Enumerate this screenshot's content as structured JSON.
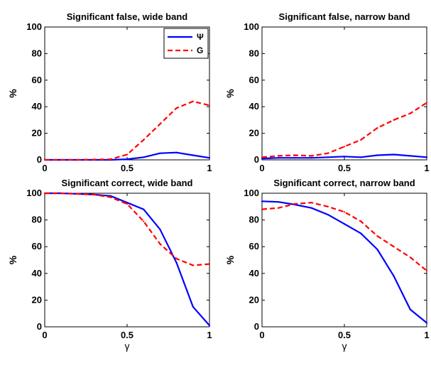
{
  "chart_data": [
    {
      "type": "line",
      "title": "Significant false, wide band",
      "xlabel": "",
      "ylabel": "%",
      "xlim": [
        0,
        1
      ],
      "ylim": [
        0,
        100
      ],
      "xticks": [
        "0",
        "0.5",
        "1"
      ],
      "yticks": [
        "0",
        "20",
        "40",
        "60",
        "80",
        "100"
      ],
      "grid": false,
      "legend": {
        "show": true,
        "placement": "top-right"
      },
      "x": [
        0,
        0.1,
        0.2,
        0.3,
        0.4,
        0.5,
        0.6,
        0.7,
        0.8,
        0.9,
        1.0
      ],
      "series": [
        {
          "name": "Ψ",
          "color": "#0000ff",
          "dash": "solid",
          "values": [
            0,
            0,
            0,
            0,
            0,
            0.5,
            2,
            5,
            5.5,
            3.5,
            1.5
          ]
        },
        {
          "name": "G",
          "color": "#ff0000",
          "dash": "dashed",
          "values": [
            0,
            0,
            0,
            0.2,
            0.5,
            4,
            15,
            27,
            39,
            44,
            41
          ]
        }
      ]
    },
    {
      "type": "line",
      "title": "Significant false, narrow band",
      "xlabel": "",
      "ylabel": "%",
      "xlim": [
        0,
        1
      ],
      "ylim": [
        0,
        100
      ],
      "xticks": [
        "0",
        "0.5",
        "1"
      ],
      "yticks": [
        "0",
        "20",
        "40",
        "60",
        "80",
        "100"
      ],
      "grid": false,
      "legend": {
        "show": false,
        "placement": "none"
      },
      "x": [
        0,
        0.1,
        0.2,
        0.3,
        0.4,
        0.5,
        0.6,
        0.7,
        0.8,
        0.9,
        1.0
      ],
      "series": [
        {
          "color": "#0000ff",
          "dash": "solid",
          "values": [
            1,
            1.5,
            1.5,
            1.5,
            2,
            2.5,
            2,
            3.5,
            4,
            3,
            2
          ]
        },
        {
          "color": "#ff0000",
          "dash": "dashed",
          "values": [
            2,
            3,
            3.5,
            3,
            5,
            10,
            15,
            24,
            30,
            35,
            43
          ]
        }
      ]
    },
    {
      "type": "line",
      "title": "Significant correct, wide band",
      "xlabel": "γ",
      "ylabel": "%",
      "xlim": [
        0,
        1
      ],
      "ylim": [
        0,
        100
      ],
      "xticks": [
        "0",
        "0.5",
        "1"
      ],
      "yticks": [
        "0",
        "20",
        "40",
        "60",
        "80",
        "100"
      ],
      "grid": false,
      "legend": {
        "show": false,
        "placement": "none"
      },
      "x": [
        0,
        0.1,
        0.2,
        0.3,
        0.4,
        0.5,
        0.6,
        0.7,
        0.8,
        0.9,
        1.0
      ],
      "series": [
        {
          "color": "#0000ff",
          "dash": "solid",
          "values": [
            100,
            100,
            99.5,
            99,
            98,
            93,
            88,
            73,
            48,
            15,
            1
          ]
        },
        {
          "color": "#ff0000",
          "dash": "dashed",
          "values": [
            100,
            100,
            99.5,
            99,
            97,
            92,
            79,
            62,
            51,
            46,
            47
          ]
        }
      ]
    },
    {
      "type": "line",
      "title": "Significant correct, narrow band",
      "xlabel": "γ",
      "ylabel": "%",
      "xlim": [
        0,
        1
      ],
      "ylim": [
        0,
        100
      ],
      "xticks": [
        "0",
        "0.5",
        "1"
      ],
      "yticks": [
        "0",
        "20",
        "40",
        "60",
        "80",
        "100"
      ],
      "grid": false,
      "legend": {
        "show": false,
        "placement": "none"
      },
      "x": [
        0,
        0.1,
        0.2,
        0.3,
        0.4,
        0.5,
        0.6,
        0.7,
        0.8,
        0.9,
        1.0
      ],
      "series": [
        {
          "color": "#0000ff",
          "dash": "solid",
          "values": [
            94,
            93.5,
            91.5,
            89,
            84,
            77,
            70,
            58,
            38,
            13,
            3
          ]
        },
        {
          "color": "#ff0000",
          "dash": "dashed",
          "values": [
            88,
            89,
            92,
            93,
            90,
            86,
            79,
            68,
            60,
            52,
            42
          ]
        }
      ]
    }
  ]
}
